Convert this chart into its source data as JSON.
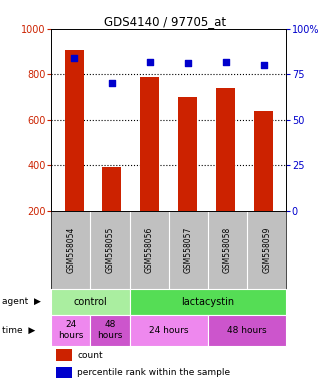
{
  "title": "GDS4140 / 97705_at",
  "samples": [
    "GSM558054",
    "GSM558055",
    "GSM558056",
    "GSM558057",
    "GSM558058",
    "GSM558059"
  ],
  "bar_values": [
    905,
    390,
    790,
    700,
    740,
    640
  ],
  "scatter_values": [
    84,
    70,
    82,
    81,
    82,
    80
  ],
  "bar_color": "#cc2200",
  "scatter_color": "#0000cc",
  "bar_bottom": 200,
  "left_ylim": [
    200,
    1000
  ],
  "right_ylim": [
    0,
    100
  ],
  "left_yticks": [
    200,
    400,
    600,
    800,
    1000
  ],
  "right_yticks": [
    0,
    25,
    50,
    75,
    100
  ],
  "right_yticklabels": [
    "0",
    "25",
    "50",
    "75",
    "100%"
  ],
  "agent_groups": [
    {
      "label": "control",
      "start": 0,
      "end": 2,
      "color": "#aaeea0"
    },
    {
      "label": "lactacystin",
      "start": 2,
      "end": 6,
      "color": "#55dd55"
    }
  ],
  "time_groups": [
    {
      "label": "24\nhours",
      "start": 0,
      "end": 1,
      "color": "#ee88ee"
    },
    {
      "label": "48\nhours",
      "start": 1,
      "end": 2,
      "color": "#cc55cc"
    },
    {
      "label": "24 hours",
      "start": 2,
      "end": 4,
      "color": "#ee88ee"
    },
    {
      "label": "48 hours",
      "start": 4,
      "end": 6,
      "color": "#cc55cc"
    }
  ],
  "legend_bar_label": "count",
  "legend_scatter_label": "percentile rank within the sample",
  "label_row_bg": "#c0c0c0"
}
